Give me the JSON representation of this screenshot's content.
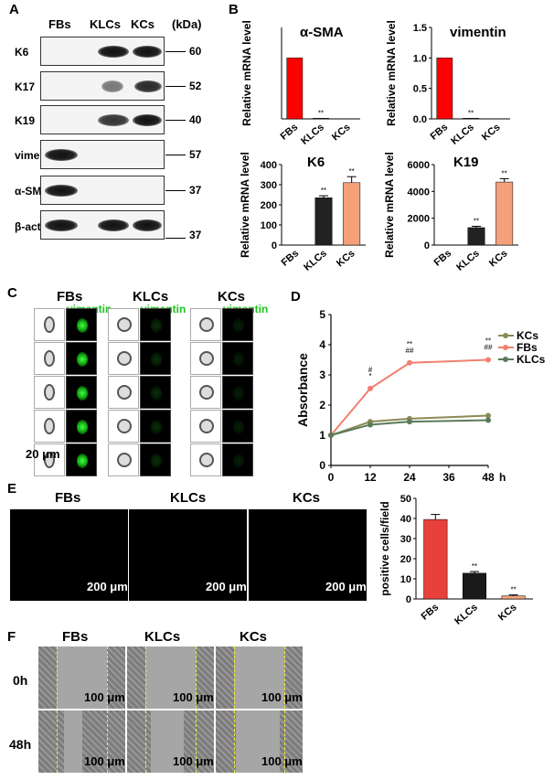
{
  "panels": {
    "A": "A",
    "B": "B",
    "C": "C",
    "D": "D",
    "E": "E",
    "F": "F"
  },
  "panelA": {
    "columns": [
      "FBs",
      "KLCs",
      "KCs"
    ],
    "kda_header": "(kDa)",
    "rows": [
      {
        "label": "K6",
        "kda": "60"
      },
      {
        "label": "K17",
        "kda": "52"
      },
      {
        "label": "K19",
        "kda": "40"
      },
      {
        "label": "vimentin",
        "kda": "57"
      },
      {
        "label": "α-SMA",
        "kda": "37"
      },
      {
        "label": "β-actin",
        "kda": "37"
      }
    ]
  },
  "panelC": {
    "groups": [
      "FBs",
      "KLCs",
      "KCs"
    ],
    "stain": "vimentin",
    "scale": "20 μm"
  },
  "panelE": {
    "groups": [
      "FBs",
      "KLCs",
      "KCs"
    ],
    "scale": "200 μm"
  },
  "panelF": {
    "groups": [
      "FBs",
      "KLCs",
      "KCs"
    ],
    "times": [
      "0h",
      "48h"
    ],
    "scale": "100 μm"
  },
  "chart_data": [
    {
      "type": "bar",
      "title": "α-SMA",
      "ylabel": "Relative mRNA level",
      "categories": [
        "FBs",
        "KLCs",
        "KCs"
      ],
      "values": [
        1.0,
        0.01,
        0.0
      ],
      "colors": [
        "#ff0000",
        "#222222",
        "#f4a07a"
      ],
      "annotations": [
        "",
        "**",
        ""
      ]
    },
    {
      "type": "bar",
      "title": "vimentin",
      "ylabel": "Relative mRNA level",
      "categories": [
        "FBs",
        "KLCs",
        "KCs"
      ],
      "values": [
        1.0,
        0.01,
        0.0
      ],
      "ylim": [
        0,
        1.5
      ],
      "yticks": [
        "0.0",
        "0.5",
        "1.0",
        "1.5"
      ],
      "colors": [
        "#ff0000",
        "#222222",
        "#f4a07a"
      ],
      "annotations": [
        "",
        "**",
        ""
      ]
    },
    {
      "type": "bar",
      "title": "K6",
      "ylabel": "Relative mRNA level",
      "categories": [
        "FBs",
        "KLCs",
        "KCs"
      ],
      "values": [
        1,
        235,
        310
      ],
      "errors": [
        0,
        10,
        30
      ],
      "ylim": [
        0,
        400
      ],
      "yticks": [
        "0",
        "100",
        "200",
        "300",
        "400"
      ],
      "colors": [
        "#ff0000",
        "#222222",
        "#f4a07a"
      ],
      "annotations": [
        "",
        "**",
        "**"
      ]
    },
    {
      "type": "bar",
      "title": "K19",
      "ylabel": "Relative mRNA level",
      "categories": [
        "FBs",
        "KLCs",
        "KCs"
      ],
      "values": [
        1,
        1300,
        4700
      ],
      "errors": [
        0,
        100,
        250
      ],
      "ylim": [
        0,
        6000
      ],
      "yticks": [
        "0",
        "2000",
        "4000",
        "6000"
      ],
      "colors": [
        "#ff0000",
        "#222222",
        "#f4a07a"
      ],
      "annotations": [
        "",
        "**",
        "**"
      ]
    },
    {
      "type": "line",
      "ylabel": "Absorbance",
      "xlabel": "h",
      "x": [
        0,
        12,
        24,
        48
      ],
      "xticks": [
        "0",
        "12",
        "24",
        "36",
        "48"
      ],
      "ylim": [
        0,
        5
      ],
      "yticks": [
        "0",
        "1",
        "2",
        "3",
        "4",
        "5"
      ],
      "series": [
        {
          "name": "KCs",
          "values": [
            1.0,
            1.45,
            1.55,
            1.65
          ],
          "color": "#8a8a55"
        },
        {
          "name": "FBs",
          "values": [
            1.0,
            2.55,
            3.4,
            3.5
          ],
          "color": "#f08070"
        },
        {
          "name": "KLCs",
          "values": [
            1.0,
            1.35,
            1.45,
            1.5
          ],
          "color": "#5a7a5a"
        }
      ],
      "annotations": [
        {
          "x": 12,
          "text": "*"
        },
        {
          "x": 12,
          "text": "#"
        },
        {
          "x": 24,
          "text": "##"
        },
        {
          "x": 24,
          "text": "**"
        },
        {
          "x": 48,
          "text": "##"
        },
        {
          "x": 48,
          "text": "**"
        }
      ],
      "legend": "right"
    },
    {
      "type": "bar",
      "ylabel": "positive cells/field",
      "categories": [
        "FBs",
        "KLCs",
        "KCs"
      ],
      "values": [
        39.5,
        12.8,
        1.5
      ],
      "errors": [
        2.5,
        0.8,
        0.5
      ],
      "ylim": [
        0,
        50
      ],
      "yticks": [
        "0",
        "10",
        "20",
        "30",
        "40",
        "50"
      ],
      "colors": [
        "#e8403a",
        "#1a1a1a",
        "#f4a07a"
      ],
      "annotations": [
        "",
        "**",
        "**"
      ]
    }
  ]
}
